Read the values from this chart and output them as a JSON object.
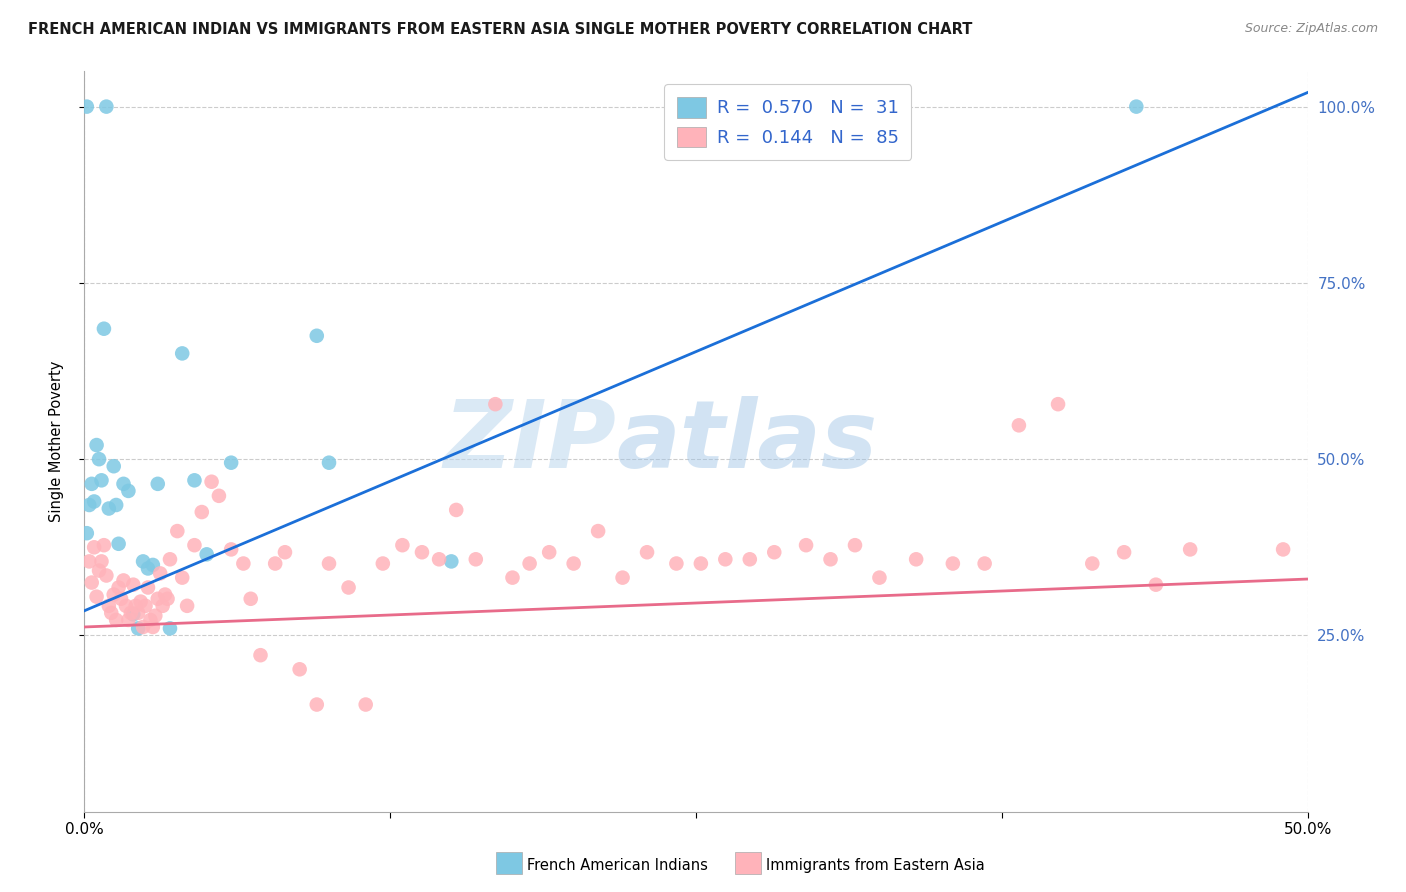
{
  "title": "FRENCH AMERICAN INDIAN VS IMMIGRANTS FROM EASTERN ASIA SINGLE MOTHER POVERTY CORRELATION CHART",
  "source": "Source: ZipAtlas.com",
  "ylabel": "Single Mother Poverty",
  "legend_line1": "R =  0.570   N =  31",
  "legend_line2": "R =  0.144   N =  85",
  "watermark_zip": "ZIP",
  "watermark_atlas": "atlas",
  "blue_color": "#7EC8E3",
  "pink_color": "#FFB3BA",
  "blue_line_color": "#1B6FD8",
  "pink_line_color": "#E86B8A",
  "legend_text_color": "#3366CC",
  "title_color": "#222222",
  "grid_color": "#CCCCCC",
  "background_color": "#FFFFFF",
  "xlim": [
    0,
    0.5
  ],
  "ylim": [
    0.0,
    1.05
  ],
  "blue_regression_y0": 0.285,
  "blue_regression_y1": 1.02,
  "pink_regression_y0": 0.262,
  "pink_regression_y1": 0.33,
  "blue_scatter_x": [
    0.001,
    0.008,
    0.009,
    0.001,
    0.002,
    0.003,
    0.004,
    0.005,
    0.006,
    0.007,
    0.01,
    0.012,
    0.013,
    0.014,
    0.016,
    0.018,
    0.02,
    0.022,
    0.024,
    0.026,
    0.028,
    0.03,
    0.035,
    0.04,
    0.045,
    0.05,
    0.06,
    0.095,
    0.1,
    0.15,
    0.43
  ],
  "blue_scatter_y": [
    0.395,
    0.685,
    1.0,
    1.0,
    0.435,
    0.465,
    0.44,
    0.52,
    0.5,
    0.47,
    0.43,
    0.49,
    0.435,
    0.38,
    0.465,
    0.455,
    0.28,
    0.26,
    0.355,
    0.345,
    0.35,
    0.465,
    0.26,
    0.65,
    0.47,
    0.365,
    0.495,
    0.675,
    0.495,
    0.355,
    1.0
  ],
  "pink_scatter_x": [
    0.002,
    0.003,
    0.004,
    0.005,
    0.006,
    0.007,
    0.008,
    0.009,
    0.01,
    0.011,
    0.012,
    0.013,
    0.014,
    0.015,
    0.016,
    0.017,
    0.018,
    0.019,
    0.02,
    0.021,
    0.022,
    0.023,
    0.024,
    0.025,
    0.026,
    0.027,
    0.028,
    0.029,
    0.03,
    0.031,
    0.032,
    0.033,
    0.034,
    0.035,
    0.038,
    0.04,
    0.042,
    0.045,
    0.048,
    0.052,
    0.055,
    0.06,
    0.065,
    0.068,
    0.072,
    0.078,
    0.082,
    0.088,
    0.095,
    0.1,
    0.108,
    0.115,
    0.122,
    0.13,
    0.138,
    0.145,
    0.152,
    0.16,
    0.168,
    0.175,
    0.182,
    0.19,
    0.2,
    0.21,
    0.22,
    0.23,
    0.242,
    0.252,
    0.262,
    0.272,
    0.282,
    0.295,
    0.305,
    0.315,
    0.325,
    0.34,
    0.355,
    0.368,
    0.382,
    0.398,
    0.412,
    0.425,
    0.438,
    0.452,
    0.49
  ],
  "pink_scatter_y": [
    0.355,
    0.325,
    0.375,
    0.305,
    0.342,
    0.355,
    0.378,
    0.335,
    0.292,
    0.282,
    0.308,
    0.272,
    0.318,
    0.302,
    0.328,
    0.292,
    0.272,
    0.282,
    0.322,
    0.292,
    0.282,
    0.298,
    0.262,
    0.292,
    0.318,
    0.272,
    0.262,
    0.278,
    0.302,
    0.338,
    0.292,
    0.308,
    0.302,
    0.358,
    0.398,
    0.332,
    0.292,
    0.378,
    0.425,
    0.468,
    0.448,
    0.372,
    0.352,
    0.302,
    0.222,
    0.352,
    0.368,
    0.202,
    0.152,
    0.352,
    0.318,
    0.152,
    0.352,
    0.378,
    0.368,
    0.358,
    0.428,
    0.358,
    0.578,
    0.332,
    0.352,
    0.368,
    0.352,
    0.398,
    0.332,
    0.368,
    0.352,
    0.352,
    0.358,
    0.358,
    0.368,
    0.378,
    0.358,
    0.378,
    0.332,
    0.358,
    0.352,
    0.352,
    0.548,
    0.578,
    0.352,
    0.368,
    0.322,
    0.372,
    0.372
  ],
  "xtick_labels_show": [
    "0.0%",
    "50.0%"
  ],
  "ytick_right_labels": [
    "25.0%",
    "50.0%",
    "75.0%",
    "100.0%"
  ],
  "bottom_legend_blue": "French American Indians",
  "bottom_legend_pink": "Immigrants from Eastern Asia"
}
